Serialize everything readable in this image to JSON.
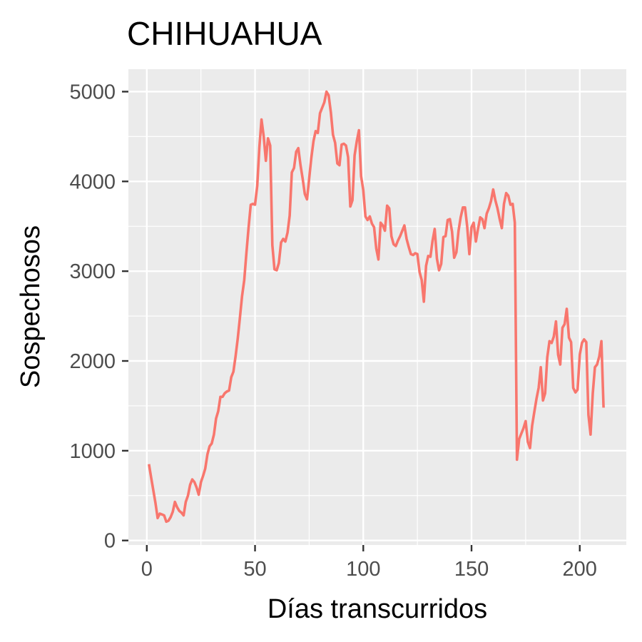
{
  "chart_data": {
    "type": "line",
    "title": "CHIHUAHUA",
    "xlabel": "Días transcurridos",
    "ylabel": "Sospechosos",
    "xlim": [
      -8.5,
      221.5
    ],
    "ylim": [
      -50,
      5250
    ],
    "x_ticks": [
      0,
      50,
      100,
      150,
      200
    ],
    "y_ticks": [
      0,
      1000,
      2000,
      3000,
      4000,
      5000
    ],
    "x_tick_labels": [
      "0",
      "50",
      "100",
      "150",
      "200"
    ],
    "y_tick_labels": [
      "0",
      "1000",
      "2000",
      "3000",
      "4000",
      "5000"
    ],
    "grid": true,
    "legend": "none",
    "colors": {
      "panel": "#ebebeb",
      "grid": "#ffffff",
      "line": "#f8766d",
      "tick": "#333333"
    },
    "series": [
      {
        "points": [
          [
            1,
            850
          ],
          [
            2,
            700
          ],
          [
            3,
            560
          ],
          [
            4,
            420
          ],
          [
            5,
            250
          ],
          [
            6,
            300
          ],
          [
            7,
            290
          ],
          [
            8,
            280
          ],
          [
            9,
            210
          ],
          [
            10,
            220
          ],
          [
            11,
            260
          ],
          [
            12,
            320
          ],
          [
            13,
            430
          ],
          [
            14,
            370
          ],
          [
            15,
            330
          ],
          [
            16,
            310
          ],
          [
            17,
            280
          ],
          [
            18,
            430
          ],
          [
            19,
            500
          ],
          [
            20,
            620
          ],
          [
            21,
            680
          ],
          [
            22,
            650
          ],
          [
            23,
            590
          ],
          [
            24,
            510
          ],
          [
            25,
            650
          ],
          [
            26,
            720
          ],
          [
            27,
            800
          ],
          [
            28,
            960
          ],
          [
            29,
            1050
          ],
          [
            30,
            1080
          ],
          [
            31,
            1180
          ],
          [
            32,
            1360
          ],
          [
            33,
            1440
          ],
          [
            34,
            1600
          ],
          [
            35,
            1600
          ],
          [
            36,
            1640
          ],
          [
            37,
            1660
          ],
          [
            38,
            1670
          ],
          [
            39,
            1820
          ],
          [
            40,
            1880
          ],
          [
            41,
            2050
          ],
          [
            42,
            2250
          ],
          [
            43,
            2480
          ],
          [
            44,
            2720
          ],
          [
            45,
            2900
          ],
          [
            46,
            3200
          ],
          [
            47,
            3480
          ],
          [
            48,
            3740
          ],
          [
            49,
            3750
          ],
          [
            50,
            3740
          ],
          [
            51,
            3950
          ],
          [
            52,
            4380
          ],
          [
            53,
            4690
          ],
          [
            54,
            4500
          ],
          [
            55,
            4230
          ],
          [
            56,
            4480
          ],
          [
            57,
            4400
          ],
          [
            58,
            3290
          ],
          [
            59,
            3020
          ],
          [
            60,
            3010
          ],
          [
            61,
            3090
          ],
          [
            62,
            3320
          ],
          [
            63,
            3360
          ],
          [
            64,
            3330
          ],
          [
            65,
            3430
          ],
          [
            66,
            3620
          ],
          [
            67,
            4100
          ],
          [
            68,
            4150
          ],
          [
            69,
            4330
          ],
          [
            70,
            4370
          ],
          [
            71,
            4180
          ],
          [
            72,
            4030
          ],
          [
            73,
            3860
          ],
          [
            74,
            3800
          ],
          [
            75,
            4030
          ],
          [
            76,
            4260
          ],
          [
            77,
            4450
          ],
          [
            78,
            4560
          ],
          [
            79,
            4540
          ],
          [
            80,
            4760
          ],
          [
            81,
            4820
          ],
          [
            82,
            4880
          ],
          [
            83,
            5000
          ],
          [
            84,
            4960
          ],
          [
            85,
            4770
          ],
          [
            86,
            4520
          ],
          [
            87,
            4430
          ],
          [
            88,
            4200
          ],
          [
            89,
            4180
          ],
          [
            90,
            4410
          ],
          [
            91,
            4420
          ],
          [
            92,
            4400
          ],
          [
            93,
            4270
          ],
          [
            94,
            3720
          ],
          [
            95,
            3790
          ],
          [
            96,
            4290
          ],
          [
            97,
            4450
          ],
          [
            98,
            4570
          ],
          [
            99,
            4060
          ],
          [
            100,
            3900
          ],
          [
            101,
            3610
          ],
          [
            102,
            3570
          ],
          [
            103,
            3610
          ],
          [
            104,
            3530
          ],
          [
            105,
            3490
          ],
          [
            106,
            3250
          ],
          [
            107,
            3130
          ],
          [
            108,
            3540
          ],
          [
            109,
            3510
          ],
          [
            110,
            3450
          ],
          [
            111,
            3730
          ],
          [
            112,
            3700
          ],
          [
            113,
            3390
          ],
          [
            114,
            3300
          ],
          [
            115,
            3280
          ],
          [
            116,
            3340
          ],
          [
            117,
            3390
          ],
          [
            118,
            3450
          ],
          [
            119,
            3510
          ],
          [
            120,
            3360
          ],
          [
            121,
            3270
          ],
          [
            122,
            3190
          ],
          [
            123,
            3180
          ],
          [
            124,
            3200
          ],
          [
            125,
            3190
          ],
          [
            126,
            2990
          ],
          [
            127,
            2900
          ],
          [
            128,
            2660
          ],
          [
            129,
            3060
          ],
          [
            130,
            3170
          ],
          [
            131,
            3160
          ],
          [
            132,
            3340
          ],
          [
            133,
            3470
          ],
          [
            134,
            3140
          ],
          [
            135,
            3010
          ],
          [
            136,
            3080
          ],
          [
            137,
            3380
          ],
          [
            138,
            3390
          ],
          [
            139,
            3570
          ],
          [
            140,
            3580
          ],
          [
            141,
            3440
          ],
          [
            142,
            3150
          ],
          [
            143,
            3210
          ],
          [
            144,
            3450
          ],
          [
            145,
            3600
          ],
          [
            146,
            3710
          ],
          [
            147,
            3710
          ],
          [
            148,
            3500
          ],
          [
            149,
            3190
          ],
          [
            150,
            3490
          ],
          [
            151,
            3540
          ],
          [
            152,
            3330
          ],
          [
            153,
            3470
          ],
          [
            154,
            3600
          ],
          [
            155,
            3580
          ],
          [
            156,
            3480
          ],
          [
            157,
            3640
          ],
          [
            158,
            3700
          ],
          [
            159,
            3780
          ],
          [
            160,
            3910
          ],
          [
            161,
            3790
          ],
          [
            162,
            3700
          ],
          [
            163,
            3580
          ],
          [
            164,
            3480
          ],
          [
            165,
            3750
          ],
          [
            166,
            3870
          ],
          [
            167,
            3840
          ],
          [
            168,
            3740
          ],
          [
            169,
            3750
          ],
          [
            170,
            3540
          ],
          [
            171,
            900
          ],
          [
            172,
            1130
          ],
          [
            173,
            1190
          ],
          [
            174,
            1250
          ],
          [
            175,
            1330
          ],
          [
            176,
            1100
          ],
          [
            177,
            1030
          ],
          [
            178,
            1280
          ],
          [
            179,
            1430
          ],
          [
            180,
            1580
          ],
          [
            181,
            1700
          ],
          [
            182,
            1930
          ],
          [
            183,
            1560
          ],
          [
            184,
            1640
          ],
          [
            185,
            2040
          ],
          [
            186,
            2220
          ],
          [
            187,
            2200
          ],
          [
            188,
            2270
          ],
          [
            189,
            2440
          ],
          [
            190,
            2070
          ],
          [
            191,
            1960
          ],
          [
            192,
            2370
          ],
          [
            193,
            2410
          ],
          [
            194,
            2580
          ],
          [
            195,
            2260
          ],
          [
            196,
            2210
          ],
          [
            197,
            1700
          ],
          [
            198,
            1650
          ],
          [
            199,
            1680
          ],
          [
            200,
            2070
          ],
          [
            201,
            2200
          ],
          [
            202,
            2240
          ],
          [
            203,
            2210
          ],
          [
            204,
            1400
          ],
          [
            205,
            1180
          ],
          [
            206,
            1640
          ],
          [
            207,
            1930
          ],
          [
            208,
            1960
          ],
          [
            209,
            2050
          ],
          [
            210,
            2220
          ],
          [
            211,
            1480
          ]
        ]
      }
    ]
  }
}
